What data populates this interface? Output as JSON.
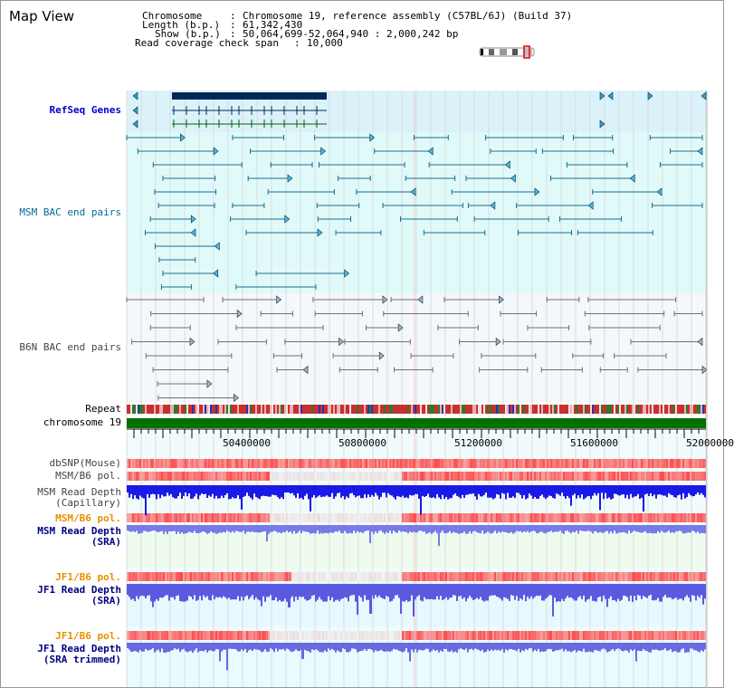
{
  "header": {
    "title": "Map View",
    "chromosome_label": "Chromosome",
    "chromosome_value": "Chromosome 19, reference assembly (C57BL/6J) (Build 37)",
    "length_label": "Length (b.p.)",
    "length_value": "61,342,430",
    "show_label": "Show (b.p.)",
    "show_value": "50,064,699-52,064,940 : 2,000,242 bp",
    "coverage_label": "Read coverage check span",
    "coverage_value": "10,000"
  },
  "tracks": {
    "refseq": "RefSeq Genes",
    "msm_bac": "MSM BAC end pairs",
    "b6n_bac": "B6N BAC end pairs",
    "repeat": "Repeat",
    "chromosome": "chromosome 19",
    "dbsnp": "dbSNP(Mouse)",
    "msm_pol1": "MSM/B6 pol.",
    "msm_depth_cap_1": "MSM Read Depth",
    "msm_depth_cap_2": "(Capillary)",
    "msm_pol2": "MSM/B6 pol.",
    "msm_depth_sra_1": "MSM Read Depth",
    "msm_depth_sra_2": "(SRA)",
    "jf1_pol1": "JF1/B6 pol.",
    "jf1_depth_sra_1": "JF1 Read Depth",
    "jf1_depth_sra_2": "(SRA)",
    "jf1_pol2": "JF1/B6 pol.",
    "jf1_depth_trim_1": "JF1 Read Depth",
    "jf1_depth_trim_2": "(SRA trimmed)"
  },
  "axis": {
    "ticks": [
      "50400000",
      "50800000",
      "51200000",
      "51600000",
      "52000000"
    ]
  },
  "colors": {
    "refseq_bg": "#dcf2fa",
    "msm_bg": "#e0fafa",
    "b6n_bg": "#f4f8fa",
    "gene": "#002a5a",
    "msm_line": "#1a6f8f",
    "b6n_line": "#707070",
    "chromosome": "#007000",
    "pol": "#e43a3a",
    "depth_cap": "#1a1ae6",
    "depth_sra": "#7a7ae6"
  }
}
